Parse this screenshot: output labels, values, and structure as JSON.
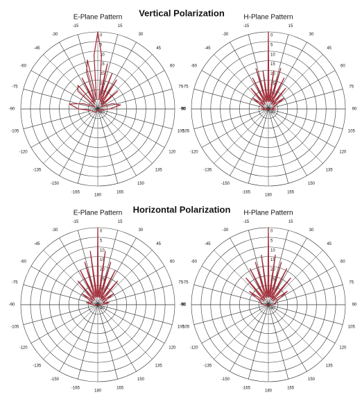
{
  "headings": [
    "Vertical Polarization",
    "Horizontal Polarization"
  ],
  "chart_data": [
    {
      "type": "polar",
      "title": "E-Plane Pattern",
      "color": "#a3303c",
      "rlim": [
        40,
        0
      ],
      "rticks": [
        0,
        5,
        10,
        15,
        20,
        25,
        30,
        35,
        40
      ],
      "thetaticks": [
        15,
        30,
        45,
        60,
        75,
        90,
        105,
        120,
        135,
        150,
        165,
        180,
        -165,
        -150,
        -135,
        -120,
        -105,
        -90,
        -75,
        -60,
        -45,
        -30,
        -15
      ],
      "theta": [
        -180,
        -150,
        -100,
        -90,
        -80,
        -70,
        -55,
        -48,
        -40,
        -33,
        -27,
        -22,
        -17,
        -12,
        -8,
        -4,
        0,
        4,
        8,
        12,
        17,
        22,
        27,
        33,
        40,
        48,
        55,
        70,
        80,
        90,
        100,
        150,
        180
      ],
      "values": [
        40,
        38,
        36,
        30,
        25,
        32,
        38,
        26,
        24,
        37,
        22,
        36,
        20,
        14,
        35,
        12,
        0,
        12,
        35,
        16,
        36,
        20,
        36,
        22,
        37,
        26,
        38,
        32,
        28,
        34,
        38,
        38,
        40
      ]
    },
    {
      "type": "polar",
      "title": "H-Plane Pattern",
      "color": "#a3303c",
      "rlim": [
        40,
        0
      ],
      "rticks": [
        0,
        5,
        10,
        15,
        20,
        25,
        30,
        35,
        40
      ],
      "thetaticks": [
        15,
        30,
        45,
        60,
        75,
        90,
        105,
        120,
        135,
        150,
        165,
        180,
        -165,
        -150,
        -135,
        -120,
        -105,
        -90,
        -75,
        -60,
        -45,
        -30,
        -15
      ],
      "theta": [
        -180,
        -150,
        -100,
        -90,
        -80,
        -70,
        -55,
        -48,
        -40,
        -33,
        -27,
        -22,
        -17,
        -12,
        -8,
        -4,
        0,
        4,
        8,
        12,
        17,
        22,
        27,
        33,
        40,
        48,
        55,
        70,
        80,
        90,
        100,
        150,
        180
      ],
      "values": [
        40,
        40,
        38,
        36,
        38,
        37,
        30,
        37,
        26,
        37,
        22,
        36,
        18,
        36,
        20,
        36,
        0,
        36,
        20,
        36,
        18,
        36,
        22,
        37,
        26,
        37,
        30,
        37,
        38,
        36,
        38,
        40,
        40
      ]
    },
    {
      "type": "polar",
      "title": "E-Plane Pattern",
      "color": "#a3303c",
      "rlim": [
        40,
        0
      ],
      "rticks": [
        0,
        5,
        10,
        15,
        20,
        25,
        30,
        35,
        40
      ],
      "thetaticks": [
        15,
        30,
        45,
        60,
        75,
        90,
        105,
        120,
        135,
        150,
        165,
        180,
        -165,
        -150,
        -135,
        -120,
        -105,
        -90,
        -75,
        -60,
        -45,
        -30,
        -15
      ],
      "theta": [
        -180,
        -150,
        -100,
        -90,
        -80,
        -70,
        -55,
        -48,
        -40,
        -33,
        -27,
        -22,
        -17,
        -12,
        -8,
        -4,
        0,
        4,
        8,
        12,
        17,
        22,
        27,
        33,
        40,
        48,
        55,
        70,
        80,
        90,
        100,
        150,
        180
      ],
      "values": [
        40,
        40,
        39,
        38,
        34,
        37,
        30,
        37,
        24,
        37,
        20,
        36,
        17,
        36,
        12,
        36,
        0,
        36,
        12,
        36,
        17,
        36,
        20,
        37,
        24,
        37,
        30,
        37,
        34,
        38,
        39,
        40,
        40
      ]
    },
    {
      "type": "polar",
      "title": "H-Plane Pattern",
      "color": "#a3303c",
      "rlim": [
        40,
        0
      ],
      "rticks": [
        0,
        5,
        10,
        15,
        20,
        25,
        30,
        35,
        40
      ],
      "thetaticks": [
        15,
        30,
        45,
        60,
        75,
        90,
        105,
        120,
        135,
        150,
        165,
        180,
        -165,
        -150,
        -135,
        -120,
        -105,
        -90,
        -75,
        -60,
        -45,
        -30,
        -15
      ],
      "theta": [
        -180,
        -150,
        -100,
        -90,
        -80,
        -70,
        -55,
        -48,
        -40,
        -33,
        -27,
        -22,
        -17,
        -12,
        -8,
        -4,
        0,
        4,
        8,
        12,
        17,
        22,
        27,
        33,
        40,
        48,
        55,
        70,
        80,
        90,
        100,
        150,
        180
      ],
      "values": [
        40,
        40,
        39,
        38,
        36,
        36,
        28,
        37,
        22,
        37,
        19,
        36,
        17,
        36,
        14,
        36,
        0,
        36,
        14,
        36,
        17,
        36,
        19,
        37,
        22,
        37,
        28,
        36,
        36,
        38,
        39,
        40,
        40
      ]
    }
  ]
}
